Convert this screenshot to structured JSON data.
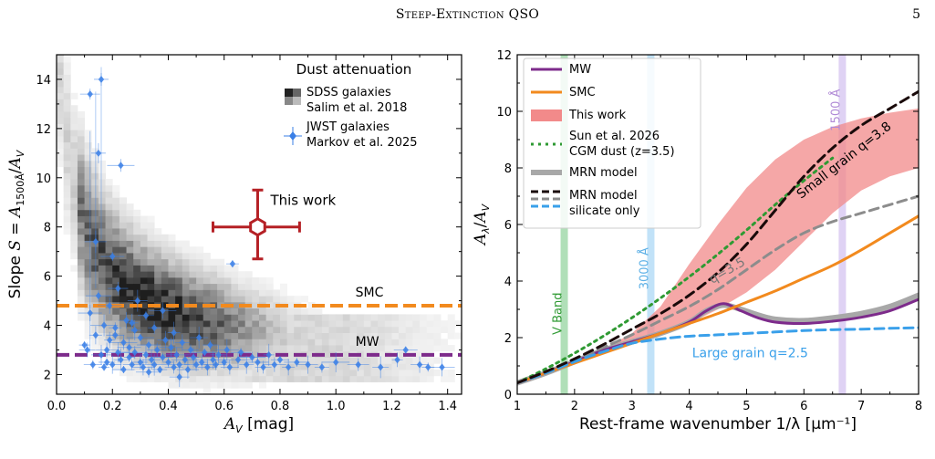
{
  "header": {
    "running_title": "Steep-Extinction QSO",
    "page_number": "5"
  },
  "colors": {
    "mw": "#7d2b8b",
    "smc": "#f28a1e",
    "this_work": "#f28a8a",
    "sun_cgm": "#2f9a33",
    "mrn": "#a8a8a8",
    "mrn_small": "#1a0a0a",
    "mrn_q35": "#8c8c8c",
    "mrn_large": "#3aa0ea",
    "jwst": "#3a7fe6",
    "this_work_point": "#b52025"
  },
  "panels": [
    {
      "id": "left",
      "chart_data": {
        "type": "scatter",
        "xlabel": "A_V [mag]",
        "ylabel": "Slope S = A_1500Å/A_V",
        "xlim": [
          0.0,
          1.45
        ],
        "ylim": [
          1.2,
          15
        ],
        "xticks": [
          "0.0",
          "0.2",
          "0.4",
          "0.6",
          "0.8",
          "1.0",
          "1.2",
          "1.4"
        ],
        "yticks": [
          "2",
          "4",
          "6",
          "8",
          "10",
          "12",
          "14"
        ],
        "legend": {
          "title": "Dust attenuation",
          "entries": [
            {
              "line1": "SDSS galaxies",
              "line2": "Salim et al. 2018"
            },
            {
              "line1": "JWST galaxies",
              "line2": "Markov et al. 2025"
            }
          ],
          "placement": "top-right"
        },
        "reference_lines": [
          {
            "name": "SMC",
            "y": 4.8
          },
          {
            "name": "MW",
            "y": 2.8
          }
        ],
        "this_work": {
          "label": "This work",
          "x": 0.72,
          "y": 8.0,
          "x_err": [
            0.16,
            0.15
          ],
          "y_err": [
            1.3,
            1.5
          ]
        },
        "jwst_points": [
          [
            0.1,
            3.2
          ],
          [
            0.12,
            4.5
          ],
          [
            0.13,
            2.4
          ],
          [
            0.14,
            3.6
          ],
          [
            0.15,
            5.2
          ],
          [
            0.16,
            2.8
          ],
          [
            0.16,
            14.0
          ],
          [
            0.17,
            4.0
          ],
          [
            0.18,
            3.0
          ],
          [
            0.18,
            2.5
          ],
          [
            0.19,
            3.4
          ],
          [
            0.2,
            6.8
          ],
          [
            0.2,
            2.4
          ],
          [
            0.21,
            3.9
          ],
          [
            0.22,
            2.9
          ],
          [
            0.22,
            5.5
          ],
          [
            0.23,
            2.6
          ],
          [
            0.24,
            3.3
          ],
          [
            0.24,
            2.2
          ],
          [
            0.25,
            4.2
          ],
          [
            0.26,
            2.7
          ],
          [
            0.26,
            3.1
          ],
          [
            0.27,
            2.4
          ],
          [
            0.28,
            3.8
          ],
          [
            0.28,
            2.9
          ],
          [
            0.29,
            5.0
          ],
          [
            0.3,
            2.5
          ],
          [
            0.3,
            3.5
          ],
          [
            0.31,
            2.3
          ],
          [
            0.32,
            4.4
          ],
          [
            0.32,
            2.8
          ],
          [
            0.33,
            3.2
          ],
          [
            0.34,
            2.6
          ],
          [
            0.35,
            3.9
          ],
          [
            0.35,
            2.4
          ],
          [
            0.36,
            3.0
          ],
          [
            0.37,
            2.2
          ],
          [
            0.38,
            4.6
          ],
          [
            0.38,
            2.7
          ],
          [
            0.39,
            3.4
          ],
          [
            0.4,
            2.5
          ],
          [
            0.41,
            3.1
          ],
          [
            0.42,
            2.3
          ],
          [
            0.42,
            3.7
          ],
          [
            0.43,
            2.8
          ],
          [
            0.44,
            2.4
          ],
          [
            0.45,
            3.3
          ],
          [
            0.46,
            2.6
          ],
          [
            0.47,
            2.2
          ],
          [
            0.48,
            3.0
          ],
          [
            0.49,
            2.7
          ],
          [
            0.5,
            2.4
          ],
          [
            0.51,
            3.5
          ],
          [
            0.52,
            2.5
          ],
          [
            0.53,
            2.9
          ],
          [
            0.54,
            2.3
          ],
          [
            0.55,
            3.2
          ],
          [
            0.56,
            2.6
          ],
          [
            0.57,
            2.4
          ],
          [
            0.58,
            2.8
          ],
          [
            0.6,
            2.5
          ],
          [
            0.61,
            3.0
          ],
          [
            0.62,
            2.3
          ],
          [
            0.63,
            6.5
          ],
          [
            0.65,
            2.6
          ],
          [
            0.66,
            2.9
          ],
          [
            0.68,
            2.4
          ],
          [
            0.7,
            2.7
          ],
          [
            0.72,
            2.5
          ],
          [
            0.74,
            2.3
          ],
          [
            0.76,
            2.8
          ],
          [
            0.78,
            2.4
          ],
          [
            0.8,
            2.6
          ],
          [
            0.83,
            2.3
          ],
          [
            0.86,
            2.5
          ],
          [
            0.9,
            2.4
          ],
          [
            0.95,
            2.3
          ],
          [
            1.0,
            2.5
          ],
          [
            1.08,
            2.4
          ],
          [
            1.16,
            2.3
          ],
          [
            1.22,
            2.6
          ],
          [
            1.25,
            3.0
          ],
          [
            1.3,
            2.4
          ],
          [
            1.33,
            2.3
          ],
          [
            1.38,
            2.3
          ],
          [
            0.12,
            13.4
          ],
          [
            0.15,
            11.0
          ],
          [
            0.23,
            10.5
          ],
          [
            0.14,
            7.4
          ],
          [
            0.11,
            3.0
          ],
          [
            0.17,
            2.3
          ],
          [
            0.19,
            4.8
          ],
          [
            0.21,
            3.6
          ],
          [
            0.27,
            4.1
          ],
          [
            0.33,
            2.1
          ],
          [
            0.44,
            1.9
          ]
        ]
      }
    },
    {
      "id": "right",
      "chart_data": {
        "type": "line",
        "xlabel": "Rest-frame wavenumber 1/λ [μm⁻¹]",
        "ylabel": "A_λ/A_V",
        "xlim": [
          1,
          8
        ],
        "ylim": [
          0,
          12
        ],
        "xticks": [
          "1",
          "2",
          "3",
          "4",
          "5",
          "6",
          "7",
          "8"
        ],
        "yticks": [
          "0",
          "2",
          "4",
          "6",
          "8",
          "10",
          "12"
        ],
        "bands": [
          {
            "label": "V Band",
            "x": 1.82
          },
          {
            "label": "3000 Å",
            "x": 3.33
          },
          {
            "label": "1500 Å",
            "x": 6.67
          }
        ],
        "legend": {
          "entries": [
            {
              "label": "MW"
            },
            {
              "label": "SMC"
            },
            {
              "label": "This work"
            },
            {
              "label": "Sun et al. 2026",
              "line2": "CGM dust (z=3.5)"
            },
            {
              "label": "MRN model"
            },
            {
              "label": "MRN model",
              "line2": "silicate only"
            }
          ],
          "placement": "top-left"
        },
        "annotations": [
          {
            "text": "Small grain q=3.8"
          },
          {
            "text": "q=3.5"
          },
          {
            "text": "Large grain q=2.5"
          }
        ],
        "series": [
          {
            "id": "mw",
            "x": [
              1,
              1.5,
              2,
              2.5,
              3,
              3.5,
              4,
              4.3,
              4.6,
              4.9,
              5.2,
              5.5,
              6,
              6.5,
              7,
              7.5,
              8
            ],
            "y": [
              0.4,
              0.75,
              1.15,
              1.55,
              1.85,
              2.15,
              2.55,
              2.95,
              3.2,
              2.95,
              2.7,
              2.55,
              2.5,
              2.58,
              2.72,
              2.95,
              3.35
            ]
          },
          {
            "id": "smc",
            "x": [
              1,
              1.5,
              2,
              2.5,
              3,
              3.5,
              4,
              4.5,
              5,
              5.5,
              6,
              6.5,
              7,
              7.5,
              8
            ],
            "y": [
              0.4,
              0.75,
              1.1,
              1.45,
              1.8,
              2.15,
              2.5,
              2.85,
              3.25,
              3.65,
              4.1,
              4.55,
              5.1,
              5.7,
              6.3
            ]
          },
          {
            "id": "this_work_upper",
            "x": [
              1,
              1.5,
              2,
              2.5,
              3,
              3.5,
              4,
              4.5,
              5,
              5.5,
              6,
              6.5,
              7,
              7.5,
              8
            ],
            "y": [
              0.35,
              0.72,
              1.15,
              1.6,
              2.15,
              3.1,
              4.6,
              6.0,
              7.3,
              8.3,
              9.0,
              9.45,
              9.75,
              9.95,
              10.1
            ]
          },
          {
            "id": "this_work_lower",
            "x": [
              1,
              1.5,
              2,
              2.5,
              3,
              3.5,
              4,
              4.5,
              5,
              5.5,
              6,
              6.5,
              7,
              7.5,
              8
            ],
            "y": [
              0.35,
              0.72,
              1.08,
              1.45,
              1.8,
              2.1,
              2.5,
              3.0,
              3.6,
              4.4,
              5.4,
              6.4,
              7.2,
              7.7,
              8.0
            ]
          },
          {
            "id": "sun_cgm",
            "x": [
              1,
              1.5,
              2,
              2.5,
              3,
              3.5,
              4,
              4.5,
              5,
              5.5,
              6,
              6.5
            ],
            "y": [
              0.4,
              0.9,
              1.45,
              2.05,
              2.7,
              3.4,
              4.15,
              4.95,
              5.8,
              6.7,
              7.55,
              8.35
            ]
          },
          {
            "id": "mrn",
            "x": [
              1,
              1.5,
              2,
              2.5,
              3,
              3.5,
              4,
              4.3,
              4.6,
              4.9,
              5.2,
              5.5,
              6,
              6.5,
              7,
              7.5,
              8
            ],
            "y": [
              0.4,
              0.75,
              1.15,
              1.55,
              1.85,
              2.15,
              2.55,
              2.95,
              3.15,
              3.0,
              2.8,
              2.65,
              2.6,
              2.7,
              2.85,
              3.1,
              3.5
            ]
          },
          {
            "id": "mrn_small",
            "x": [
              1,
              1.5,
              2,
              2.5,
              3,
              3.5,
              4,
              4.5,
              5,
              5.5,
              6,
              6.5,
              7,
              7.5,
              8
            ],
            "y": [
              0.4,
              0.8,
              1.25,
              1.75,
              2.3,
              2.85,
              3.5,
              4.3,
              5.3,
              6.5,
              7.7,
              8.7,
              9.5,
              10.1,
              10.7
            ]
          },
          {
            "id": "mrn_q35",
            "x": [
              1,
              1.5,
              2,
              2.5,
              3,
              3.5,
              4,
              4.5,
              5,
              5.5,
              6,
              6.5,
              7,
              7.5,
              8
            ],
            "y": [
              0.4,
              0.8,
              1.2,
              1.65,
              2.1,
              2.6,
              3.1,
              3.7,
              4.4,
              5.1,
              5.7,
              6.1,
              6.4,
              6.7,
              7.0
            ]
          },
          {
            "id": "mrn_large",
            "x": [
              1,
              1.5,
              2,
              2.5,
              3,
              3.5,
              4,
              4.5,
              5,
              5.5,
              6,
              6.5,
              7,
              7.5,
              8
            ],
            "y": [
              0.4,
              0.75,
              1.15,
              1.5,
              1.8,
              1.95,
              2.05,
              2.1,
              2.15,
              2.2,
              2.25,
              2.28,
              2.3,
              2.33,
              2.35
            ]
          }
        ]
      }
    }
  ]
}
